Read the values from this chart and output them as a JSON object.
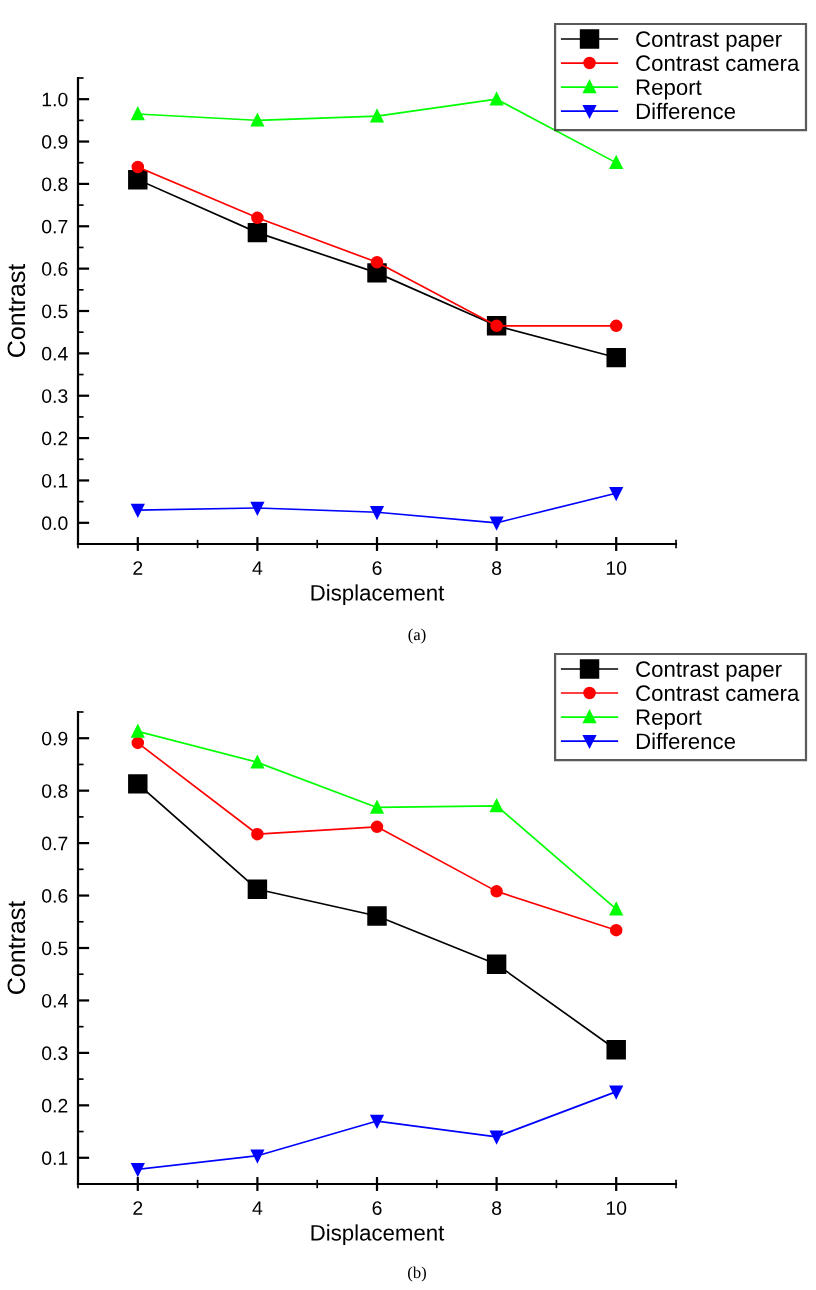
{
  "chart_data": [
    {
      "type": "line",
      "xlabel": "Displacement",
      "ylabel": "Contrast",
      "annotations": [
        "(a)"
      ],
      "x": [
        2,
        4,
        6,
        8,
        10
      ],
      "xlim": [
        1,
        11
      ],
      "xticks": [
        2,
        4,
        6,
        8,
        10
      ],
      "ylim": [
        -0.05,
        1.05
      ],
      "yticks": [
        {
          "value": 0,
          "label": "0.0"
        },
        0.1,
        0.2,
        0.3,
        0.4,
        0.5,
        0.6,
        0.7,
        0.8,
        0.9,
        {
          "value": 1,
          "label": "1.0"
        }
      ],
      "grid": false,
      "legend": "top right",
      "line_style": "solid",
      "series": [
        {
          "name": "Contrast paper",
          "color": "#000000",
          "marker": "square",
          "values": [
            0.81,
            0.685,
            0.59,
            0.465,
            0.39
          ]
        },
        {
          "name": "Contrast camera",
          "color": "#ff0000",
          "marker": "circle",
          "values": [
            0.84,
            0.72,
            0.615,
            0.465,
            0.465
          ]
        },
        {
          "name": "Report",
          "color": "#00ff00",
          "marker": "triangle",
          "values": [
            0.965,
            0.95,
            0.96,
            1.0,
            0.85
          ]
        },
        {
          "name": "Difference",
          "color": "#0000ff",
          "marker": "triangle_down",
          "values": [
            0.03,
            0.035,
            0.025,
            0.0,
            0.07
          ]
        }
      ]
    },
    {
      "type": "line",
      "xlabel": "Displacement",
      "ylabel": "Contrast",
      "annotations": [
        "(b)"
      ],
      "x": [
        2,
        4,
        6,
        8,
        10
      ],
      "xlim": [
        1,
        11
      ],
      "xticks": [
        2,
        4,
        6,
        8,
        10
      ],
      "ylim": [
        0.05,
        0.95
      ],
      "yticks": [
        0.1,
        0.2,
        0.3,
        0.4,
        0.5,
        0.6,
        0.7,
        0.8,
        0.9
      ],
      "grid": false,
      "legend": "top right",
      "line_style": "solid",
      "series": [
        {
          "name": "Contrast paper",
          "color": "#000000",
          "marker": "square",
          "values": [
            0.813,
            0.612,
            0.561,
            0.469,
            0.306
          ]
        },
        {
          "name": "Contrast camera",
          "color": "#ff0000",
          "marker": "circle",
          "values": [
            0.891,
            0.717,
            0.731,
            0.608,
            0.534
          ]
        },
        {
          "name": "Report",
          "color": "#00ff00",
          "marker": "triangle",
          "values": [
            0.913,
            0.854,
            0.768,
            0.771,
            0.574
          ]
        },
        {
          "name": "Difference",
          "color": "#0000ff",
          "marker": "triangle_down",
          "values": [
            0.078,
            0.104,
            0.17,
            0.14,
            0.226
          ]
        }
      ]
    }
  ]
}
